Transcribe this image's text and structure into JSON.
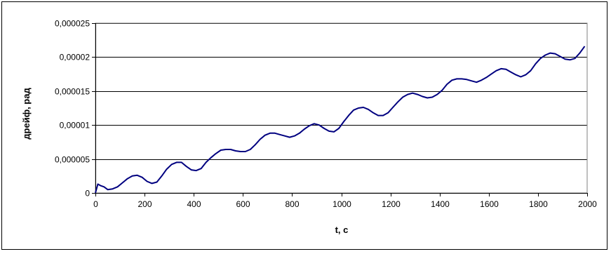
{
  "chart_data": {
    "type": "line",
    "title": "",
    "xlabel": "t, c",
    "ylabel": "дрейф, рад",
    "xlim": [
      0,
      2000
    ],
    "ylim": [
      0,
      2.5e-05
    ],
    "x_ticks": [
      0,
      200,
      400,
      600,
      800,
      1000,
      1200,
      1400,
      1600,
      1800,
      2000
    ],
    "x_tick_labels": [
      "0",
      "200",
      "400",
      "600",
      "800",
      "1000",
      "1200",
      "1400",
      "1600",
      "1800",
      "2000"
    ],
    "y_ticks": [
      0,
      5e-06,
      1e-05,
      1.5e-05,
      2e-05,
      2.5e-05
    ],
    "y_tick_labels": [
      "0",
      "0,000005",
      "0,00001",
      "0,000015",
      "0,00002",
      "0,000025"
    ],
    "grid": "horizontal",
    "legend": "none",
    "series_color": "#000080",
    "series": [
      {
        "x": [
          0,
          10,
          20,
          35,
          50,
          70,
          90,
          110,
          130,
          150,
          170,
          190,
          210,
          230,
          250,
          270,
          290,
          310,
          330,
          350,
          370,
          390,
          410,
          430,
          450,
          470,
          490,
          510,
          530,
          550,
          570,
          590,
          610,
          630,
          650,
          670,
          690,
          710,
          730,
          750,
          770,
          790,
          810,
          830,
          850,
          870,
          890,
          910,
          930,
          950,
          970,
          990,
          1010,
          1030,
          1050,
          1070,
          1090,
          1110,
          1130,
          1150,
          1170,
          1190,
          1210,
          1230,
          1250,
          1270,
          1290,
          1310,
          1330,
          1350,
          1370,
          1390,
          1410,
          1430,
          1450,
          1470,
          1490,
          1510,
          1530,
          1550,
          1570,
          1590,
          1610,
          1630,
          1650,
          1670,
          1690,
          1710,
          1730,
          1750,
          1770,
          1790,
          1810,
          1830,
          1850,
          1870,
          1890,
          1910,
          1930,
          1950,
          1970,
          1990
        ],
        "y": [
          0.0,
          1.3e-06,
          1.1e-06,
          9e-07,
          5e-07,
          6e-07,
          9e-07,
          1.5e-06,
          2.1e-06,
          2.5e-06,
          2.6e-06,
          2.3e-06,
          1.7e-06,
          1.4e-06,
          1.6e-06,
          2.5e-06,
          3.5e-06,
          4.2e-06,
          4.5e-06,
          4.5e-06,
          3.9e-06,
          3.4e-06,
          3.3e-06,
          3.6e-06,
          4.5e-06,
          5.2e-06,
          5.8e-06,
          6.3e-06,
          6.4e-06,
          6.4e-06,
          6.2e-06,
          6.1e-06,
          6.1e-06,
          6.4e-06,
          7.1e-06,
          7.9e-06,
          8.5e-06,
          8.8e-06,
          8.8e-06,
          8.6e-06,
          8.4e-06,
          8.2e-06,
          8.4e-06,
          8.8e-06,
          9.4e-06,
          9.9e-06,
          1.02e-05,
          1e-05,
          9.5e-06,
          9.1e-06,
          9e-06,
          9.5e-06,
          1.05e-05,
          1.14e-05,
          1.22e-05,
          1.25e-05,
          1.26e-05,
          1.23e-05,
          1.18e-05,
          1.14e-05,
          1.14e-05,
          1.18e-05,
          1.26e-05,
          1.34e-05,
          1.41e-05,
          1.45e-05,
          1.47e-05,
          1.45e-05,
          1.42e-05,
          1.4e-05,
          1.41e-05,
          1.45e-05,
          1.51e-05,
          1.6e-05,
          1.66e-05,
          1.68e-05,
          1.68e-05,
          1.67e-05,
          1.65e-05,
          1.63e-05,
          1.66e-05,
          1.7e-05,
          1.75e-05,
          1.8e-05,
          1.83e-05,
          1.82e-05,
          1.78e-05,
          1.74e-05,
          1.71e-05,
          1.74e-05,
          1.8e-05,
          1.9e-05,
          1.98e-05,
          2.03e-05,
          2.06e-05,
          2.05e-05,
          2.01e-05,
          1.97e-05,
          1.96e-05,
          1.98e-05,
          2.06e-05,
          2.16e-05
        ]
      }
    ]
  }
}
